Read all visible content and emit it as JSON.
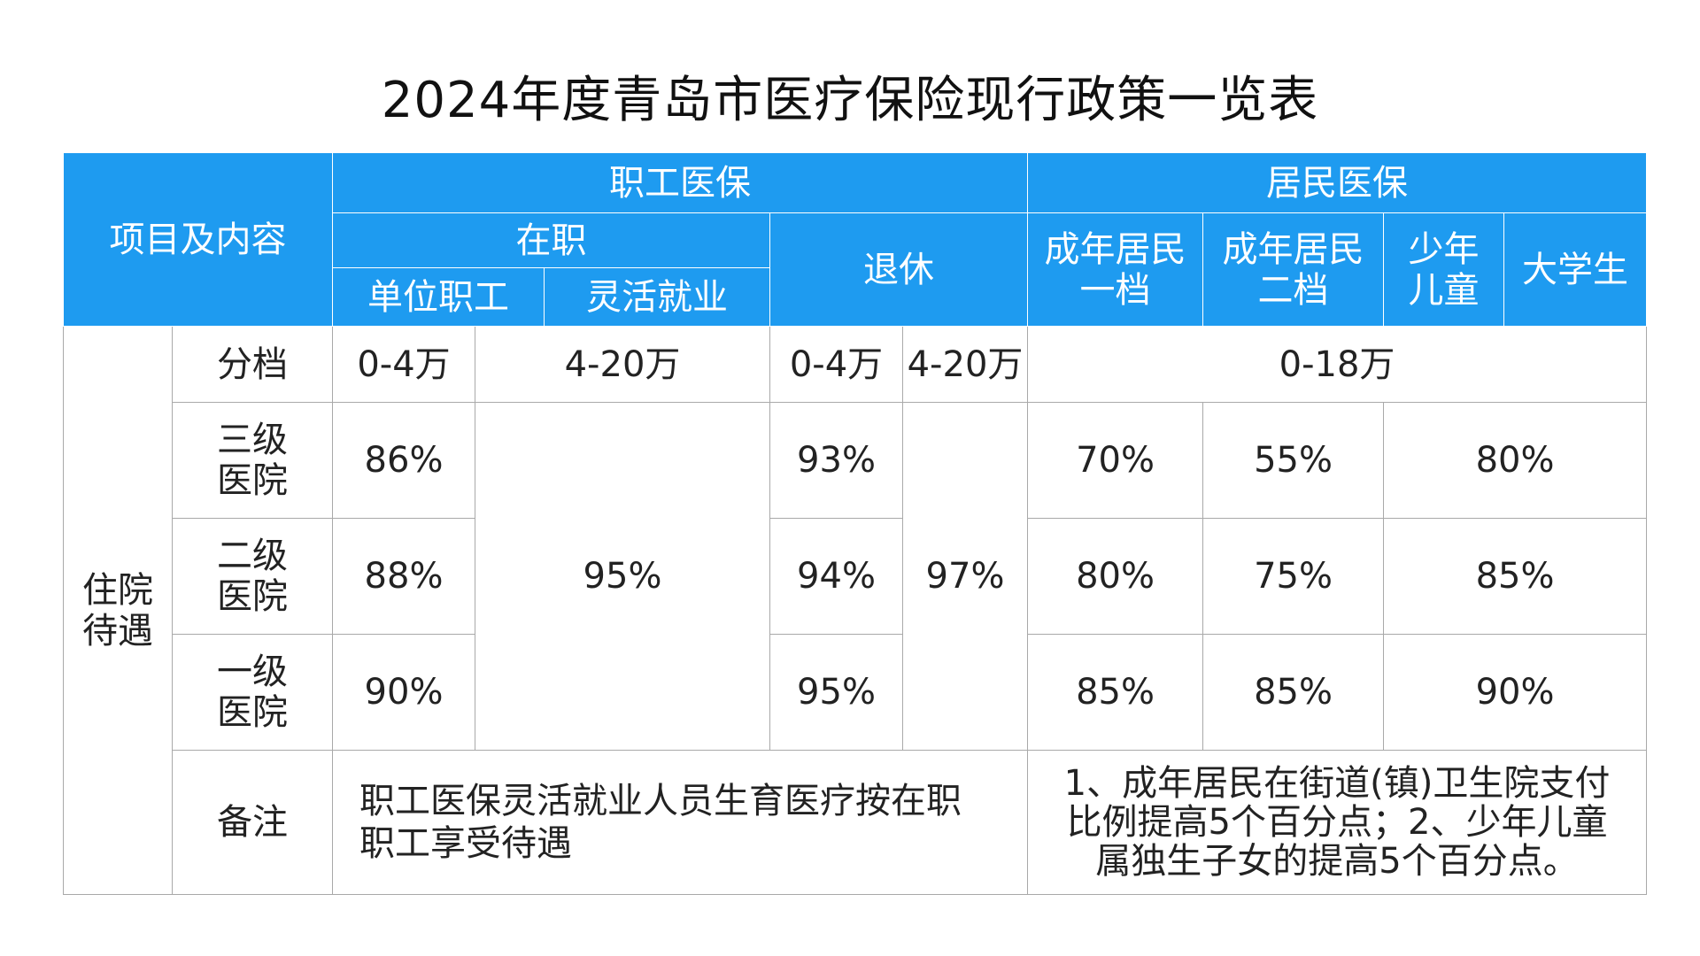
{
  "title": "2024年度青岛市医疗保险现行政策一览表",
  "header": {
    "item": "项目及内容",
    "employee": "职工医保",
    "resident": "居民医保",
    "in_service": "在职",
    "retired": "退休",
    "unit_staff": "单位职工",
    "flexible": "灵活就业",
    "adult_1_a": "成年居民",
    "adult_1_b": "一档",
    "adult_2_a": "成年居民",
    "adult_2_b": "二档",
    "youth_a": "少年",
    "youth_b": "儿童",
    "student": "大学生"
  },
  "body": {
    "group": [
      "住院",
      "待遇"
    ],
    "tier_label": "分档",
    "tiers": {
      "unit_low": "0-4万",
      "unit_high": "4-20万",
      "retired_low": "0-4万",
      "retired_high": "4-20万",
      "resident": "0-18万"
    },
    "rows": [
      {
        "label": [
          "三级",
          "医院"
        ],
        "unit_low": "86%",
        "retired_low": "93%",
        "adult_1": "70%",
        "adult_2": "55%",
        "youth_student": "80%"
      },
      {
        "label": [
          "二级",
          "医院"
        ],
        "unit_low": "88%",
        "retired_low": "94%",
        "adult_1": "80%",
        "adult_2": "75%",
        "youth_student": "85%"
      },
      {
        "label": [
          "一级",
          "医院"
        ],
        "unit_low": "90%",
        "retired_low": "95%",
        "adult_1": "85%",
        "adult_2": "85%",
        "youth_student": "90%"
      }
    ],
    "merged_unit_high": "95%",
    "merged_retired_high": "97%",
    "note_label": "备注",
    "note_employee": [
      "职工医保灵活就业人员生育医疗按在职",
      "职工享受待遇"
    ],
    "note_resident": [
      "1、成年居民在街道(镇)卫生院支付",
      "比例提高5个百分点；2、少年儿童",
      "属独生子女的提高5个百分点。"
    ]
  }
}
